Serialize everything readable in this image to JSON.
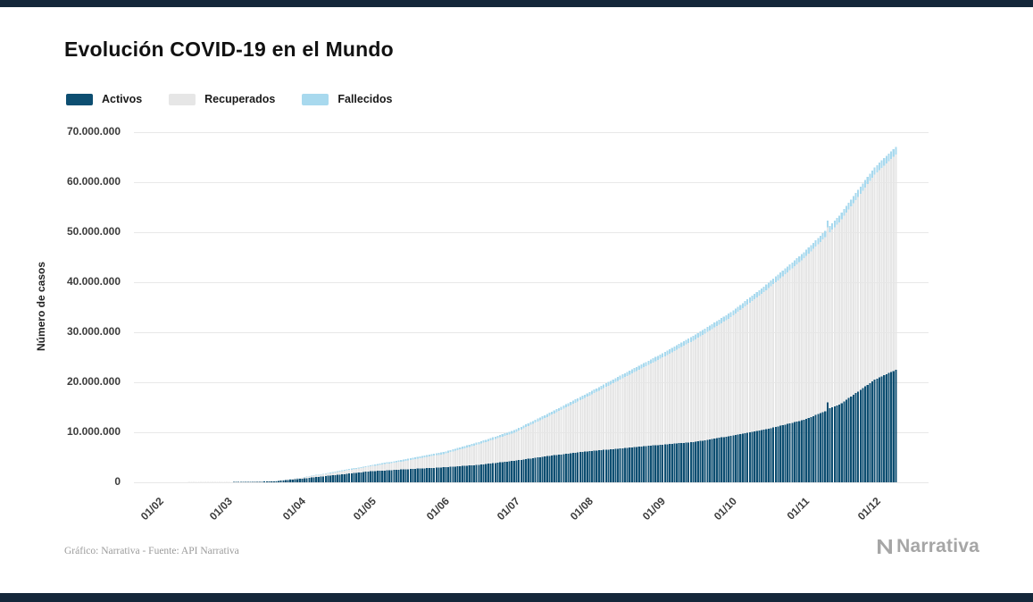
{
  "theme": {
    "strip_color": "#14273a",
    "gridline_color": "#e8e8e8",
    "background": "#ffffff"
  },
  "footer": {
    "credit": "Gráfico: Narrativa - Fuente: API Narrativa",
    "brand": "Narrativa"
  },
  "chart_data": {
    "type": "bar",
    "stacked": true,
    "title": "Evolución COVID-19 en el Mundo",
    "ylabel": "Número de casos",
    "ylim": [
      0,
      70000000
    ],
    "grid": true,
    "legend_position": "top-left",
    "ytick_values": [
      0,
      10000000,
      20000000,
      30000000,
      40000000,
      50000000,
      60000000,
      70000000
    ],
    "ytick_labels": [
      "0",
      "10.000.000",
      "20.000.000",
      "30.000.000",
      "40.000.000",
      "50.000.000",
      "60.000.000",
      "70.000.000"
    ],
    "x_tick_labels": [
      "01/02",
      "01/03",
      "01/04",
      "01/05",
      "01/06",
      "01/07",
      "01/08",
      "01/09",
      "01/10",
      "01/11",
      "01/12"
    ],
    "x_tick_days": [
      10,
      39,
      70,
      100,
      131,
      161,
      192,
      223,
      253,
      284,
      314
    ],
    "x_total_days": 323,
    "series": [
      {
        "name": "Activos",
        "color": "#0d4e71"
      },
      {
        "name": "Recuperados",
        "color": "#e6e6e6"
      },
      {
        "name": "Fallecidos",
        "color": "#a8d9ee"
      }
    ],
    "samples_format": [
      "day_index",
      "activos",
      "recuperados",
      "fallecidos"
    ],
    "samples": [
      [
        0,
        500,
        30,
        17
      ],
      [
        10,
        11000,
        500,
        260
      ],
      [
        20,
        37500,
        4700,
        1100
      ],
      [
        39,
        41000,
        42000,
        3000
      ],
      [
        50,
        65000,
        68000,
        4600
      ],
      [
        60,
        220000,
        92000,
        14000
      ],
      [
        70,
        690000,
        190000,
        47000
      ],
      [
        85,
        1450000,
        520000,
        140000
      ],
      [
        100,
        2200000,
        1000000,
        230000
      ],
      [
        115,
        2600000,
        1700000,
        310000
      ],
      [
        131,
        3000000,
        2660000,
        372000
      ],
      [
        146,
        3500000,
        4100000,
        440000
      ],
      [
        161,
        4300000,
        5600000,
        510000
      ],
      [
        176,
        5300000,
        8000000,
        590000
      ],
      [
        192,
        6200000,
        10900000,
        680000
      ],
      [
        207,
        6800000,
        14000000,
        770000
      ],
      [
        223,
        7500000,
        17200000,
        850000
      ],
      [
        238,
        8100000,
        20500000,
        940000
      ],
      [
        253,
        9300000,
        23700000,
        1010000
      ],
      [
        268,
        10600000,
        27800000,
        1110000
      ],
      [
        284,
        12500000,
        32300000,
        1200000
      ],
      [
        293,
        14200000,
        34800000,
        1270000
      ],
      [
        294,
        16000000,
        35000000,
        1280000
      ],
      [
        295,
        14800000,
        35200000,
        1290000
      ],
      [
        299,
        15500000,
        36500000,
        1330000
      ],
      [
        314,
        20500000,
        41000000,
        1480000
      ],
      [
        323,
        22500000,
        43000000,
        1560000
      ]
    ]
  }
}
